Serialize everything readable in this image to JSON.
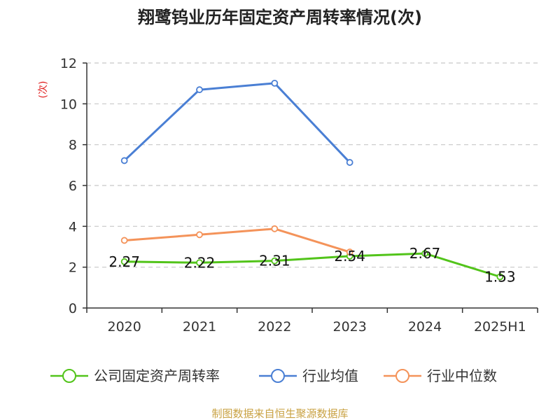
{
  "chart_data": {
    "type": "line",
    "title": "翔鹭钨业历年固定资产周转率情况(次)",
    "ylabel": "(次)",
    "categories": [
      "2020",
      "2021",
      "2022",
      "2023",
      "2024",
      "2025H1"
    ],
    "ylim": [
      0,
      12
    ],
    "yticks": [
      0,
      2,
      4,
      6,
      8,
      10,
      12
    ],
    "grid": true,
    "legend_position": "bottom",
    "series": [
      {
        "name": "公司固定资产周转率",
        "color": "#52c41a",
        "values": [
          2.27,
          2.22,
          2.31,
          2.54,
          2.67,
          1.53
        ],
        "labels": [
          "2.27",
          "2.22",
          "2.31",
          "2.54",
          "2.67",
          "1.53"
        ]
      },
      {
        "name": "行业均值",
        "color": "#4a7fd4",
        "values": [
          7.22,
          10.69,
          11.01,
          7.13,
          null,
          null
        ]
      },
      {
        "name": "行业中位数",
        "color": "#f4935a",
        "values": [
          3.31,
          3.59,
          3.88,
          2.74,
          null,
          null
        ]
      }
    ]
  },
  "source_note": "制图数据来自恒生聚源数据库"
}
